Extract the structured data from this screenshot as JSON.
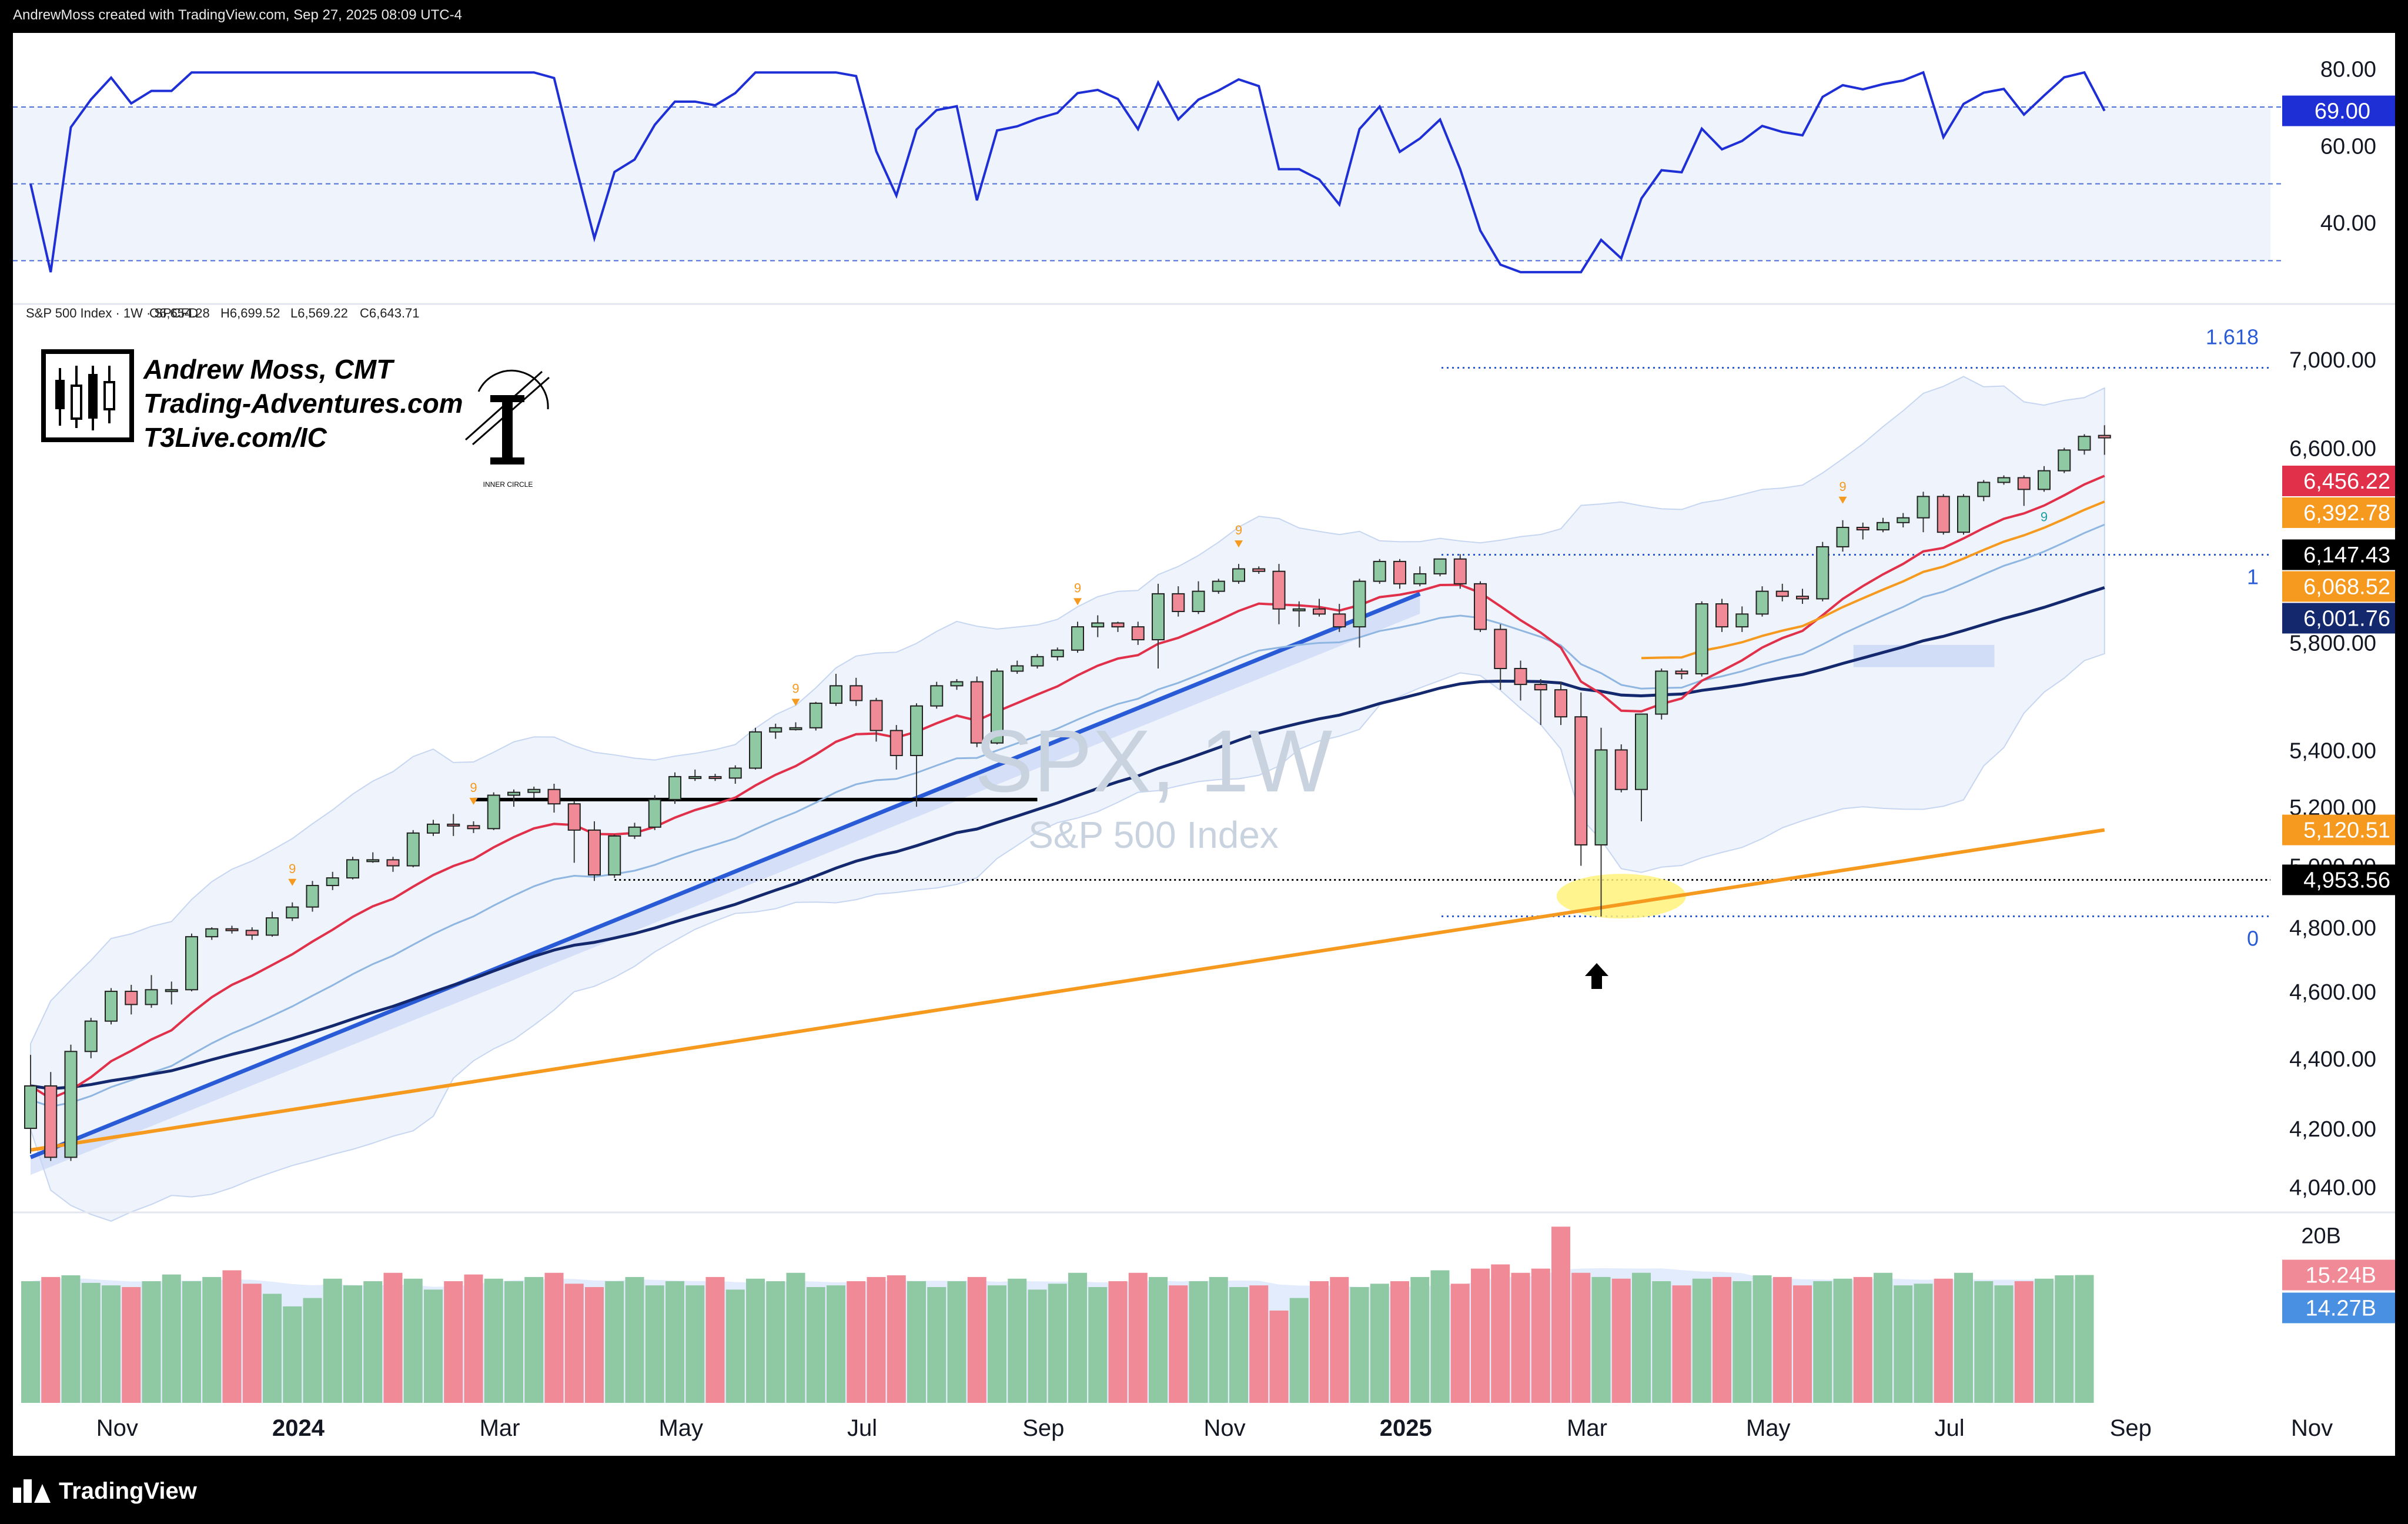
{
  "header": {
    "text": "AndrewMoss created with TradingView.com, Sep 27, 2025 08:09 UTC-4"
  },
  "footer": {
    "brand": "TradingView"
  },
  "branding": {
    "author": "Andrew Moss, CMT",
    "site": "Trading-Adventures.com",
    "site2": "T3Live.com/IC",
    "logo_text": "INNER CIRCLE"
  },
  "colors": {
    "up": "#8fc9a3",
    "down": "#f08a96",
    "rsi_line": "#1f2fd6",
    "ema_red": "#e0304a",
    "ema_orange": "#f59a1e",
    "ma_navy": "#14286e",
    "ma_light": "#8fb6e0",
    "trendline": "#2a5bd7",
    "band_fill": "#eef3fc"
  },
  "chart_data": {
    "type": "candlestick",
    "symbol": "SPX",
    "interval": "1W",
    "watermark": {
      "symbol": "SPX, 1W",
      "name": "S&P 500 Index"
    },
    "legend": {
      "title": "S&P 500 Index · 1W · SPCFD",
      "open": "O6,654.28",
      "high": "H6,699.52",
      "low": "L6,569.22",
      "close": "C6,643.71"
    },
    "price_axis": {
      "scale": "log",
      "range": [
        4000,
        7250
      ],
      "ticks": [
        "7,000.00",
        "6,600.00",
        "5,800.00",
        "5,400.00",
        "5,200.00",
        "5,000.00",
        "4,800.00",
        "4,600.00",
        "4,400.00",
        "4,200.00",
        "4,040.00"
      ],
      "tick_values": [
        7000,
        6600,
        5800,
        5400,
        5200,
        5000,
        4800,
        4600,
        4400,
        4200,
        4040
      ]
    },
    "price_labels": [
      {
        "text": "6,456.22",
        "value": 6456.22,
        "color": "#e0304a"
      },
      {
        "text": "6,392.78",
        "value": 6392.78,
        "color": "#f59a1e"
      },
      {
        "text": "6,147.43",
        "value": 6147.43,
        "color": "#000000"
      },
      {
        "text": "6,068.52",
        "value": 6068.52,
        "color": "#f59a1e"
      },
      {
        "text": "6,001.76",
        "value": 6001.76,
        "color": "#14286e"
      },
      {
        "text": "5,120.51",
        "value": 5120.51,
        "color": "#f59a1e"
      },
      {
        "text": "4,953.56",
        "value": 4953.56,
        "color": "#000000"
      }
    ],
    "fib_levels": [
      {
        "label": "1.618",
        "value": 6960
      },
      {
        "label": "1",
        "value": 6147.43
      },
      {
        "label": "0",
        "value": 4835
      }
    ],
    "time_axis": {
      "labels": [
        "Nov",
        "2024",
        "Mar",
        "May",
        "Jul",
        "Sep",
        "Nov",
        "2025",
        "Mar",
        "May",
        "Jul",
        "Sep",
        "Nov"
      ],
      "bold": [
        false,
        true,
        false,
        false,
        false,
        false,
        false,
        true,
        false,
        false,
        false,
        false,
        false
      ],
      "label_week": [
        4.3,
        13.3,
        23.3,
        32.3,
        41.3,
        50.3,
        59.3,
        68.3,
        77.3,
        86.3,
        95.3,
        104.3,
        113.3
      ]
    },
    "candles": [
      [
        4200,
        4410,
        4130,
        4320
      ],
      [
        4320,
        4360,
        4110,
        4120
      ],
      [
        4120,
        4440,
        4110,
        4420
      ],
      [
        4420,
        4520,
        4400,
        4510
      ],
      [
        4510,
        4610,
        4500,
        4600
      ],
      [
        4600,
        4620,
        4530,
        4560
      ],
      [
        4560,
        4650,
        4550,
        4605
      ],
      [
        4605,
        4630,
        4560,
        4605
      ],
      [
        4605,
        4780,
        4600,
        4770
      ],
      [
        4770,
        4800,
        4760,
        4795
      ],
      [
        4795,
        4805,
        4780,
        4790
      ],
      [
        4790,
        4800,
        4760,
        4775
      ],
      [
        4775,
        4850,
        4770,
        4830
      ],
      [
        4830,
        4880,
        4820,
        4865
      ],
      [
        4865,
        4950,
        4850,
        4935
      ],
      [
        4935,
        4980,
        4920,
        4960
      ],
      [
        4960,
        5030,
        4955,
        5020
      ],
      [
        5020,
        5045,
        5010,
        5020
      ],
      [
        5020,
        5030,
        4980,
        5000
      ],
      [
        5000,
        5120,
        4995,
        5110
      ],
      [
        5110,
        5155,
        5100,
        5140
      ],
      [
        5140,
        5175,
        5100,
        5135
      ],
      [
        5135,
        5150,
        5110,
        5125
      ],
      [
        5125,
        5250,
        5120,
        5240
      ],
      [
        5240,
        5260,
        5200,
        5250
      ],
      [
        5250,
        5270,
        5230,
        5260
      ],
      [
        5260,
        5280,
        5180,
        5210
      ],
      [
        5210,
        5220,
        5010,
        5120
      ],
      [
        5120,
        5150,
        4950,
        4970
      ],
      [
        4970,
        5105,
        4960,
        5100
      ],
      [
        5100,
        5145,
        5090,
        5130
      ],
      [
        5130,
        5240,
        5120,
        5225
      ],
      [
        5225,
        5320,
        5210,
        5305
      ],
      [
        5305,
        5330,
        5290,
        5305
      ],
      [
        5305,
        5315,
        5290,
        5300
      ],
      [
        5300,
        5345,
        5280,
        5335
      ],
      [
        5335,
        5480,
        5330,
        5465
      ],
      [
        5465,
        5495,
        5440,
        5480
      ],
      [
        5480,
        5500,
        5470,
        5480
      ],
      [
        5480,
        5575,
        5470,
        5570
      ],
      [
        5570,
        5680,
        5560,
        5635
      ],
      [
        5635,
        5665,
        5560,
        5580
      ],
      [
        5580,
        5590,
        5430,
        5470
      ],
      [
        5470,
        5490,
        5330,
        5380
      ],
      [
        5380,
        5570,
        5200,
        5560
      ],
      [
        5560,
        5650,
        5550,
        5635
      ],
      [
        5635,
        5660,
        5620,
        5650
      ],
      [
        5650,
        5670,
        5410,
        5425
      ],
      [
        5425,
        5700,
        5420,
        5690
      ],
      [
        5690,
        5730,
        5680,
        5710
      ],
      [
        5710,
        5755,
        5700,
        5745
      ],
      [
        5745,
        5780,
        5730,
        5770
      ],
      [
        5770,
        5880,
        5760,
        5860
      ],
      [
        5860,
        5905,
        5820,
        5875
      ],
      [
        5875,
        5880,
        5840,
        5860
      ],
      [
        5860,
        5880,
        5790,
        5810
      ],
      [
        5810,
        6030,
        5700,
        5990
      ],
      [
        5990,
        6020,
        5900,
        5920
      ],
      [
        5920,
        6040,
        5910,
        6000
      ],
      [
        6000,
        6050,
        5990,
        6040
      ],
      [
        6040,
        6110,
        6030,
        6090
      ],
      [
        6090,
        6100,
        6070,
        6080
      ],
      [
        6080,
        6110,
        5870,
        5930
      ],
      [
        5930,
        5960,
        5860,
        5930
      ],
      [
        5930,
        5970,
        5900,
        5910
      ],
      [
        5910,
        5950,
        5840,
        5860
      ],
      [
        5860,
        6050,
        5780,
        6040
      ],
      [
        6040,
        6130,
        6030,
        6120
      ],
      [
        6120,
        6130,
        6010,
        6030
      ],
      [
        6030,
        6100,
        6020,
        6070
      ],
      [
        6070,
        6130,
        6060,
        6130
      ],
      [
        6130,
        6150,
        6010,
        6030
      ],
      [
        6030,
        6040,
        5840,
        5850
      ],
      [
        5850,
        5870,
        5620,
        5700
      ],
      [
        5700,
        5730,
        5580,
        5640
      ],
      [
        5640,
        5660,
        5490,
        5620
      ],
      [
        5620,
        5650,
        5490,
        5520
      ],
      [
        5520,
        5610,
        5000,
        5070
      ],
      [
        5070,
        5480,
        4835,
        5400
      ],
      [
        5400,
        5420,
        5250,
        5260
      ],
      [
        5260,
        5530,
        5150,
        5530
      ],
      [
        5530,
        5700,
        5510,
        5690
      ],
      [
        5690,
        5700,
        5660,
        5680
      ],
      [
        5680,
        5960,
        5670,
        5950
      ],
      [
        5950,
        5970,
        5840,
        5860
      ],
      [
        5860,
        5940,
        5840,
        5910
      ],
      [
        5910,
        6020,
        5900,
        6000
      ],
      [
        6000,
        6030,
        5960,
        5980
      ],
      [
        5980,
        6010,
        5950,
        5970
      ],
      [
        5970,
        6200,
        5960,
        6180
      ],
      [
        6180,
        6290,
        6160,
        6260
      ],
      [
        6260,
        6280,
        6210,
        6250
      ],
      [
        6250,
        6300,
        6240,
        6280
      ],
      [
        6280,
        6320,
        6260,
        6300
      ],
      [
        6300,
        6410,
        6240,
        6390
      ],
      [
        6390,
        6400,
        6230,
        6240
      ],
      [
        6240,
        6400,
        6230,
        6390
      ],
      [
        6390,
        6460,
        6370,
        6450
      ],
      [
        6450,
        6480,
        6440,
        6470
      ],
      [
        6470,
        6480,
        6350,
        6420
      ],
      [
        6420,
        6520,
        6410,
        6500
      ],
      [
        6500,
        6600,
        6490,
        6590
      ],
      [
        6590,
        6660,
        6570,
        6650
      ],
      [
        6654.28,
        6699.52,
        6569.22,
        6643.71
      ]
    ],
    "volume": {
      "axis_label": "20B",
      "labels": [
        {
          "text": "15.24B",
          "color": "#f08a96"
        },
        {
          "text": "14.27B",
          "color": "#4a90e2"
        }
      ],
      "values": [
        14.5,
        15.0,
        15.2,
        14.3,
        14.0,
        13.8,
        14.5,
        15.3,
        14.5,
        15.0,
        15.8,
        14.2,
        13.0,
        11.5,
        12.5,
        14.8,
        14.0,
        14.5,
        15.5,
        14.8,
        13.5,
        14.5,
        15.3,
        14.8,
        14.5,
        15.0,
        15.5,
        14.2,
        13.8,
        14.5,
        15.0,
        14.0,
        14.5,
        14.0,
        15.0,
        13.5,
        14.8,
        14.5,
        15.5,
        13.8,
        14.0,
        14.5,
        15.0,
        15.2,
        14.5,
        13.8,
        14.5,
        15.0,
        14.0,
        14.8,
        13.5,
        14.2,
        15.5,
        13.8,
        14.5,
        15.5,
        15.0,
        14.0,
        14.5,
        15.0,
        13.8,
        14.0,
        11.0,
        12.5,
        14.5,
        15.0,
        13.8,
        14.2,
        14.5,
        15.0,
        15.8,
        14.2,
        16.0,
        16.5,
        15.5,
        16.0,
        21.0,
        15.5,
        15.0,
        14.8,
        15.5,
        14.5,
        14.0,
        14.8,
        15.0,
        14.5,
        15.2,
        15.0,
        14.0,
        14.5,
        14.8,
        15.0,
        15.5,
        14.0,
        14.2,
        14.8,
        15.5,
        14.5,
        14.0,
        14.5,
        14.8,
        15.2,
        15.24
      ]
    },
    "rsi": {
      "axis_ticks": [
        "80.00",
        "60.00",
        "40.00"
      ],
      "tick_values": [
        80,
        60,
        40
      ],
      "range": [
        25,
        85
      ],
      "levels": [
        70,
        50,
        30
      ],
      "current_label": "69.00",
      "current": 69
    }
  }
}
